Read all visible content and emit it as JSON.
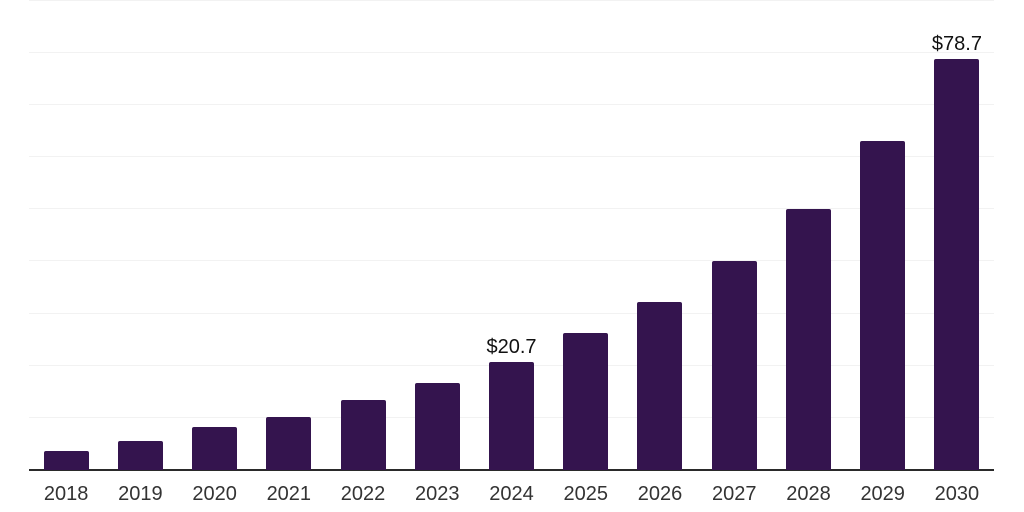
{
  "chart_data": {
    "type": "bar",
    "title": "",
    "xlabel": "",
    "ylabel": "",
    "categories": [
      "2018",
      "2019",
      "2020",
      "2021",
      "2022",
      "2023",
      "2024",
      "2025",
      "2026",
      "2027",
      "2028",
      "2029",
      "2030"
    ],
    "values": [
      3.6,
      5.6,
      8.3,
      10.1,
      13.5,
      16.6,
      20.7,
      26.2,
      32.3,
      40.0,
      50.1,
      63.0,
      78.7
    ],
    "data_labels": [
      "",
      "",
      "",
      "",
      "",
      "",
      "$20.7",
      "",
      "",
      "",
      "",
      "",
      "$78.7"
    ],
    "ylim": [
      0,
      90.1
    ],
    "gridline_values": [
      0,
      10,
      20,
      30,
      40,
      50,
      60,
      70,
      80,
      90
    ],
    "grid": "horizontal-only, no y-axis tick labels, no legend, no title",
    "colors": {
      "bar": "#34144e",
      "axis_line": "#2a2a2a",
      "gridline": "#f2f2f2",
      "tick_label": "#333333",
      "data_label": "#111111",
      "background": "#ffffff"
    }
  }
}
